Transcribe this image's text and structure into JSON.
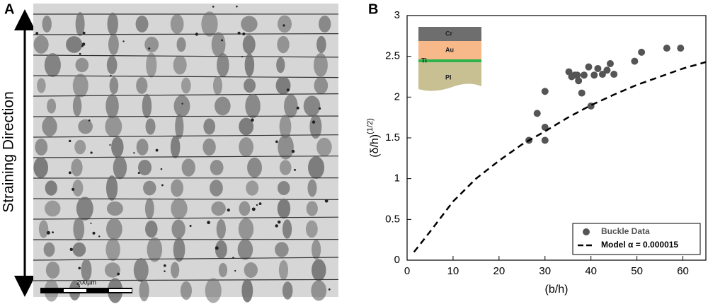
{
  "panel_a": {
    "label": "A",
    "axis_text": "Straining Direction",
    "scale_bar": "200µm"
  },
  "chart_data": {
    "type": "scatter",
    "label": "B",
    "x_label": "(b/h)",
    "y_label": "(δ/h)",
    "y_label_superscript": "(1/2)",
    "xlim": [
      0,
      65
    ],
    "xticks": [
      0,
      10,
      20,
      30,
      40,
      50,
      60
    ],
    "ylim": [
      0,
      3
    ],
    "yticks": [
      0,
      0.5,
      1,
      1.5,
      2,
      2.5,
      3
    ],
    "legend": "lower right",
    "inset": {
      "layers": [
        "Cr",
        "Au",
        "Ti",
        "PI"
      ]
    },
    "series": [
      {
        "name": "Buckle Data",
        "type": "scatter",
        "color": "#555555",
        "x": [
          26.5,
          28.3,
          30,
          30,
          30,
          35.2,
          35.8,
          36.5,
          37,
          37.3,
          38,
          38.5,
          39.5,
          40,
          40.7,
          41.5,
          42.5,
          43.5,
          44.2,
          45,
          49.5,
          51,
          56.5,
          59.5
        ],
        "y": [
          1.47,
          1.8,
          2.07,
          1.63,
          1.47,
          2.31,
          2.25,
          2.27,
          2.27,
          2.2,
          2.05,
          2.27,
          2.37,
          1.89,
          2.27,
          2.35,
          2.28,
          2.33,
          2.41,
          2.28,
          2.44,
          2.55,
          2.6,
          2.6
        ]
      },
      {
        "name": "Model α = 0.000015",
        "type": "line",
        "color": "#000000",
        "x": [
          1.5,
          5,
          10,
          15,
          20,
          25,
          30,
          35,
          40,
          45,
          50,
          55,
          60,
          65
        ],
        "y": [
          0.1,
          0.35,
          0.72,
          1.0,
          1.22,
          1.42,
          1.58,
          1.75,
          1.9,
          2.03,
          2.15,
          2.25,
          2.35,
          2.43
        ]
      }
    ]
  }
}
